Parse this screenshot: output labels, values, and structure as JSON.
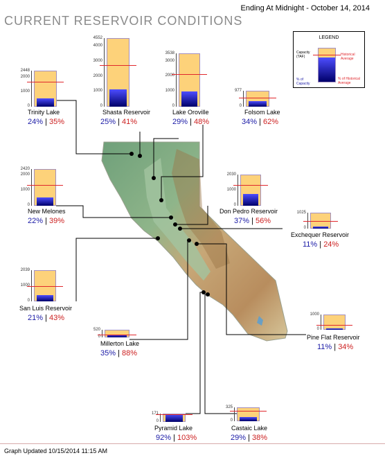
{
  "header": {
    "title": "CURRENT RESERVOIR CONDITIONS",
    "date_line": "Ending At Midnight - October 14, 2014",
    "updated": "Graph Updated 10/15/2014 11:15 AM"
  },
  "legend": {
    "title": "LEGEND",
    "capacity_label": "Capacity (TAF)",
    "historical_label": "Historical Average",
    "pct_capacity_label": "% of Capacity",
    "pct_historical_label": "% of Historical Average"
  },
  "colors": {
    "capacity_fill": "#fdd27a",
    "storage_fill": "#1a1ab8",
    "historical_line": "#e0272c",
    "pct_capacity_text": "#1a1aa6",
    "pct_historical_text": "#cc1f1f",
    "title_text": "#8a8a8a"
  },
  "reservoirs": [
    {
      "id": "trinity",
      "name": "Trinity Lake",
      "capacity": "2448",
      "ticks": [
        "2000",
        "1000",
        "0"
      ],
      "pct_capacity": "24%",
      "pct_historical": "35%",
      "storage_fraction": 0.24,
      "historical_fraction": 0.686
    },
    {
      "id": "shasta",
      "name": "Shasta Reservoir",
      "capacity": "4552",
      "ticks": [
        "4000",
        "3000",
        "2000",
        "1000",
        "0"
      ],
      "pct_capacity": "25%",
      "pct_historical": "41%",
      "storage_fraction": 0.25,
      "historical_fraction": 0.61
    },
    {
      "id": "oroville",
      "name": "Lake Oroville",
      "capacity": "3538",
      "ticks": [
        "3000",
        "2000",
        "1000",
        "0"
      ],
      "pct_capacity": "29%",
      "pct_historical": "48%",
      "storage_fraction": 0.29,
      "historical_fraction": 0.604
    },
    {
      "id": "folsom",
      "name": "Folsom Lake",
      "capacity": "977",
      "ticks": [
        "0"
      ],
      "pct_capacity": "34%",
      "pct_historical": "62%",
      "storage_fraction": 0.34,
      "historical_fraction": 0.548
    },
    {
      "id": "melones",
      "name": "New Melones",
      "capacity": "2420",
      "ticks": [
        "2000",
        "1000",
        "0"
      ],
      "pct_capacity": "22%",
      "pct_historical": "39%",
      "storage_fraction": 0.22,
      "historical_fraction": 0.564
    },
    {
      "id": "donpedro",
      "name": "Don Pedro Reservoir",
      "capacity": "2030",
      "ticks": [
        "1000",
        "0"
      ],
      "pct_capacity": "37%",
      "pct_historical": "56%",
      "storage_fraction": 0.37,
      "historical_fraction": 0.661
    },
    {
      "id": "exchequer",
      "name": "Exchequer Reservoir",
      "capacity": "1025",
      "ticks": [
        "0"
      ],
      "pct_capacity": "11%",
      "pct_historical": "24%",
      "storage_fraction": 0.11,
      "historical_fraction": 0.458
    },
    {
      "id": "sanluis",
      "name": "San Luis Reservoir",
      "capacity": "2039",
      "ticks": [
        "1000",
        "0"
      ],
      "pct_capacity": "21%",
      "pct_historical": "43%",
      "storage_fraction": 0.21,
      "historical_fraction": 0.488
    },
    {
      "id": "millerton",
      "name": "Millerton Lake",
      "capacity": "520",
      "ticks": [
        "0"
      ],
      "pct_capacity": "35%",
      "pct_historical": "88%",
      "storage_fraction": 0.35,
      "historical_fraction": 0.398
    },
    {
      "id": "pineflat",
      "name": "Pine Flat Reservoir",
      "capacity": "1000",
      "ticks": [
        "0"
      ],
      "pct_capacity": "11%",
      "pct_historical": "34%",
      "storage_fraction": 0.11,
      "historical_fraction": 0.324
    },
    {
      "id": "pyramid",
      "name": "Pyramid Lake",
      "capacity": "171",
      "ticks": [
        "0"
      ],
      "pct_capacity": "92%",
      "pct_historical": "103%",
      "storage_fraction": 0.92,
      "historical_fraction": 0.893
    },
    {
      "id": "castaic",
      "name": "Castaic Lake",
      "capacity": "325",
      "ticks": [
        "0"
      ],
      "pct_capacity": "29%",
      "pct_historical": "38%",
      "storage_fraction": 0.29,
      "historical_fraction": 0.763
    }
  ]
}
